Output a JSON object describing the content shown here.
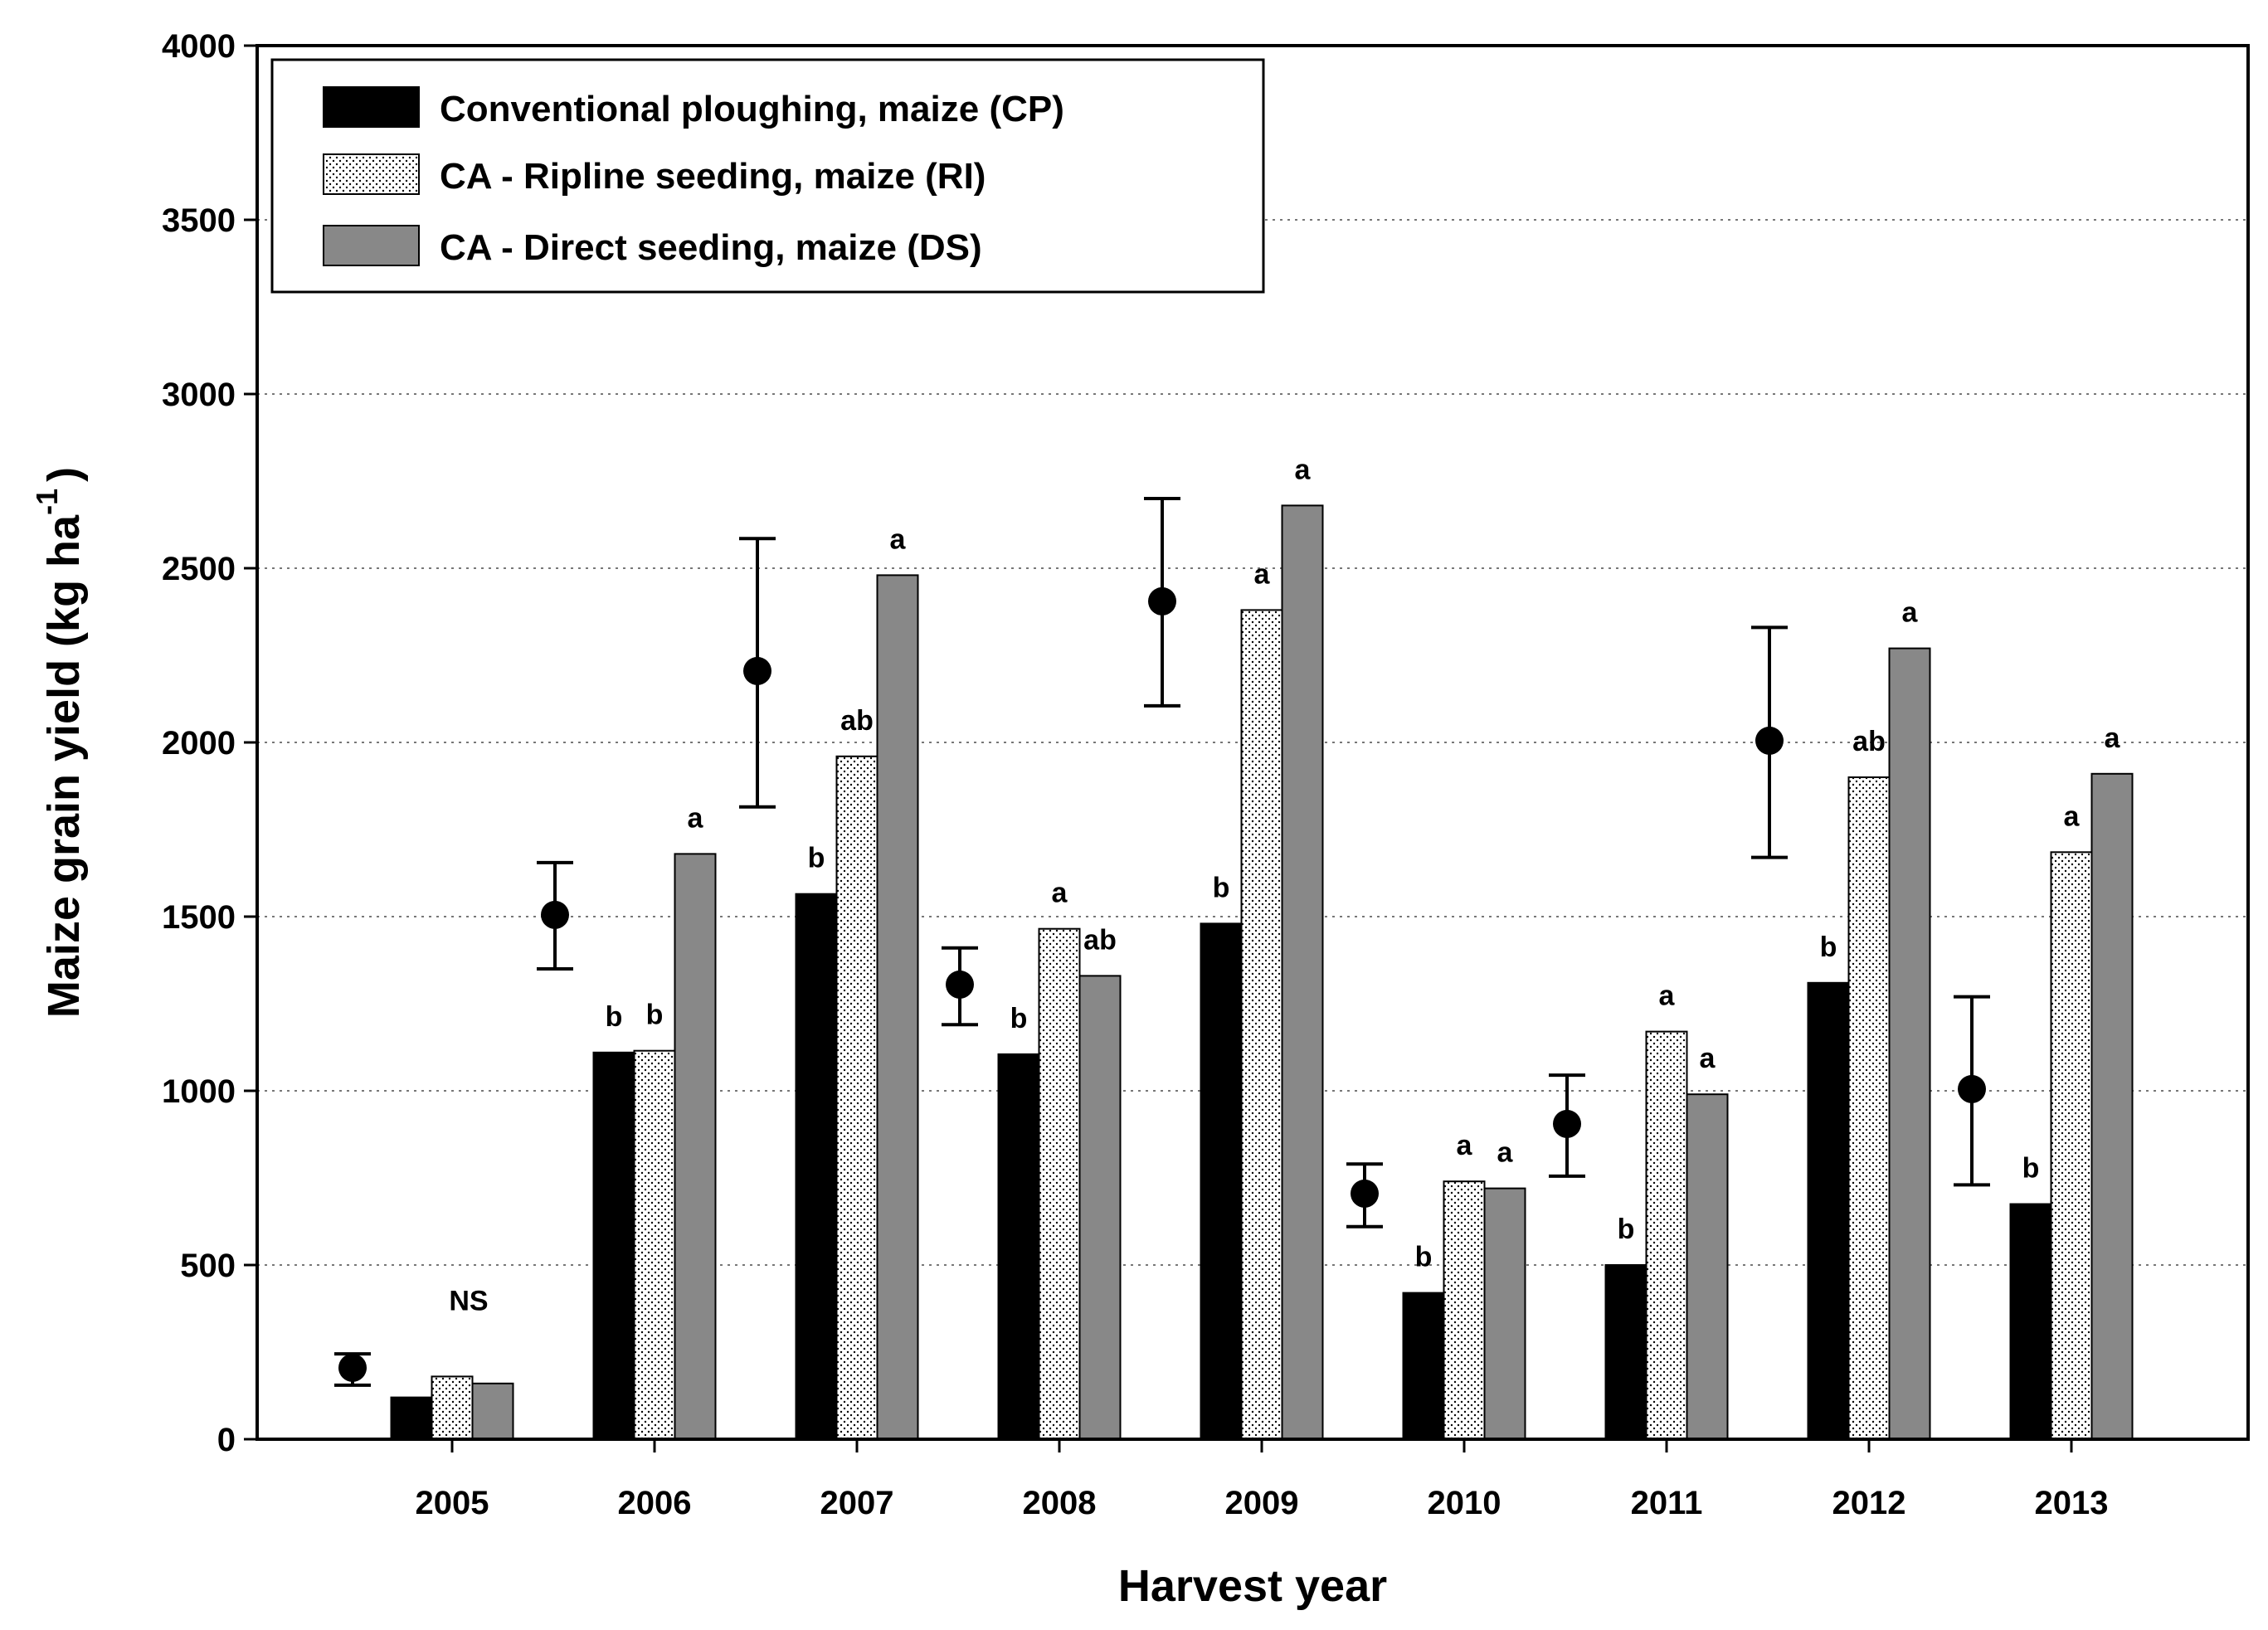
{
  "chart_data": {
    "type": "bar",
    "title": "",
    "xlabel": "Harvest year",
    "ylabel": "Maize grain yield (kg ha",
    "ylabel_superscript": "-1",
    "ylabel_close": ")",
    "ylim": [
      0,
      4000
    ],
    "yticks": [
      0,
      500,
      1000,
      1500,
      2000,
      2500,
      3000,
      3500,
      4000
    ],
    "grid": "horizontal dotted",
    "legend_position": "top-left",
    "categories": [
      "2005",
      "2006",
      "2007",
      "2008",
      "2009",
      "2010",
      "2011",
      "2012",
      "2013"
    ],
    "series": [
      {
        "name": "Conventional ploughing, maize (CP)",
        "color": "#000000",
        "pattern": "solid",
        "values": [
          120,
          1110,
          1565,
          1105,
          1480,
          420,
          500,
          1310,
          675
        ],
        "labels": [
          "",
          "b",
          "b",
          "b",
          "b",
          "b",
          "b",
          "b",
          "b"
        ]
      },
      {
        "name": "CA - Ripline seeding, maize (RI)",
        "color": "#ffffff",
        "pattern": "dotted",
        "values": [
          180,
          1115,
          1960,
          1465,
          2380,
          740,
          1170,
          1900,
          1685
        ],
        "labels": [
          "",
          "b",
          "ab",
          "a",
          "a",
          "a",
          "a",
          "ab",
          "a"
        ]
      },
      {
        "name": "CA - Direct seeding, maize (DS)",
        "color": "#888888",
        "pattern": "solid",
        "values": [
          160,
          1680,
          2480,
          1330,
          2680,
          720,
          990,
          2270,
          1910
        ],
        "labels": [
          "",
          "a",
          "a",
          "ab",
          "a",
          "a",
          "a",
          "a",
          "a"
        ]
      }
    ],
    "group_annotations": [
      "NS",
      "",
      "",
      "",
      "",
      "",
      "",
      "",
      ""
    ],
    "reference_points": {
      "description": "LSD / reference marker with error bar",
      "values": [
        205,
        1505,
        2205,
        1305,
        2405,
        705,
        905,
        2005,
        1005
      ],
      "error_low": [
        155,
        1350,
        1815,
        1190,
        2105,
        610,
        755,
        1670,
        730
      ],
      "error_high": [
        245,
        1655,
        2585,
        1410,
        2700,
        790,
        1045,
        2330,
        1270
      ]
    }
  }
}
